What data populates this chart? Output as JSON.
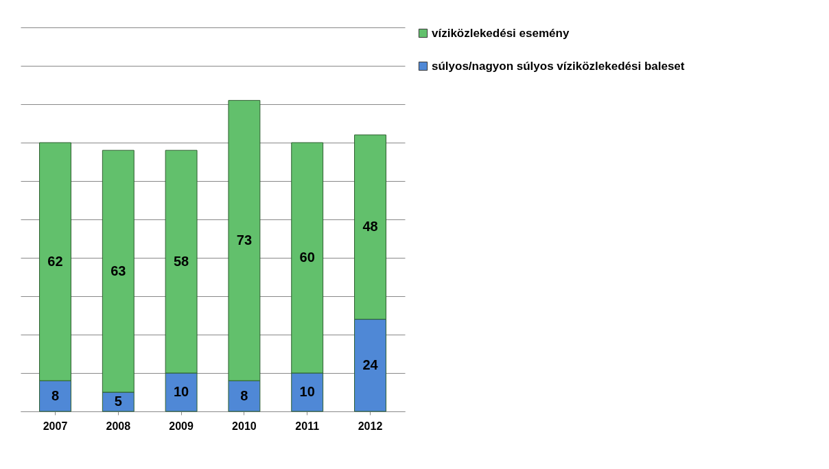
{
  "chart_data": {
    "type": "bar",
    "stacked": true,
    "categories": [
      "2007",
      "2008",
      "2009",
      "2010",
      "2011",
      "2012"
    ],
    "series": [
      {
        "name": "súlyos/nagyon súlyos víziközlekedési baleset",
        "color": "#4f88d6",
        "values": [
          8,
          5,
          10,
          8,
          10,
          24
        ]
      },
      {
        "name": "víziközlekedési esemény",
        "color": "#62c06c",
        "values": [
          62,
          63,
          58,
          73,
          60,
          48
        ]
      }
    ],
    "ylim": [
      0,
      100
    ],
    "yticks": [
      {
        "value": 0,
        "label": null
      },
      {
        "value": 10,
        "label": null
      },
      {
        "value": 20,
        "label": null
      },
      {
        "value": 30,
        "label": null
      },
      {
        "value": 40,
        "label": null
      },
      {
        "value": 50,
        "label": null
      },
      {
        "value": 60,
        "label": null
      },
      {
        "value": 70,
        "label": null
      },
      {
        "value": 80,
        "label": null
      },
      {
        "value": 90,
        "label": null
      },
      {
        "value": 100,
        "label": null
      }
    ],
    "grid": "y",
    "tick_labels": "x",
    "data_labels": true,
    "legend": "right"
  }
}
